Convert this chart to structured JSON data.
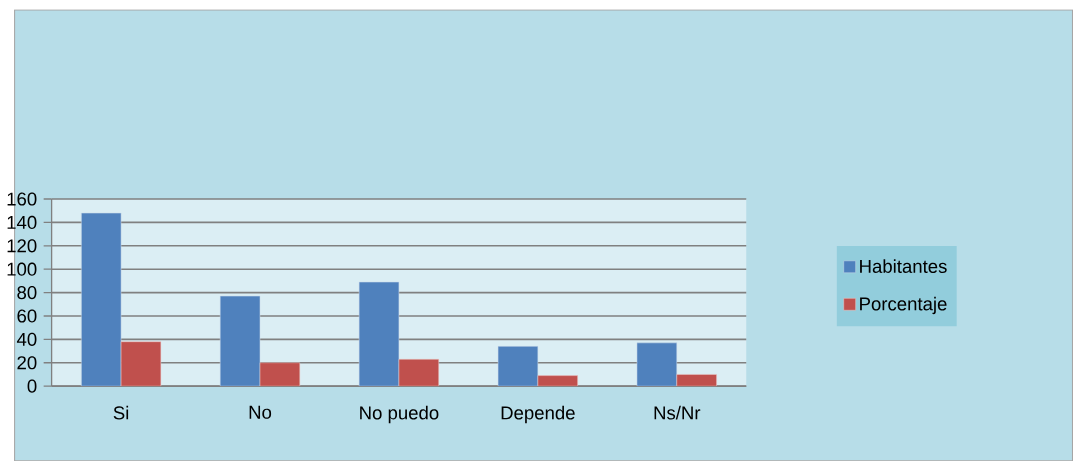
{
  "chart_data": {
    "type": "bar",
    "categories": [
      "Si",
      "No",
      "No puedo",
      "Depende",
      "Ns/Nr"
    ],
    "series": [
      {
        "name": "Habitantes",
        "color": "#4f81bd",
        "values": [
          148,
          77,
          89,
          34,
          37
        ]
      },
      {
        "name": "Porcentaje",
        "color": "#c0504d",
        "values": [
          38,
          20,
          23,
          9,
          10
        ]
      }
    ],
    "ylim": [
      0,
      160
    ],
    "yticks": [
      0,
      20,
      40,
      60,
      80,
      100,
      120,
      140,
      160
    ],
    "grid": "y",
    "legend": "right"
  }
}
